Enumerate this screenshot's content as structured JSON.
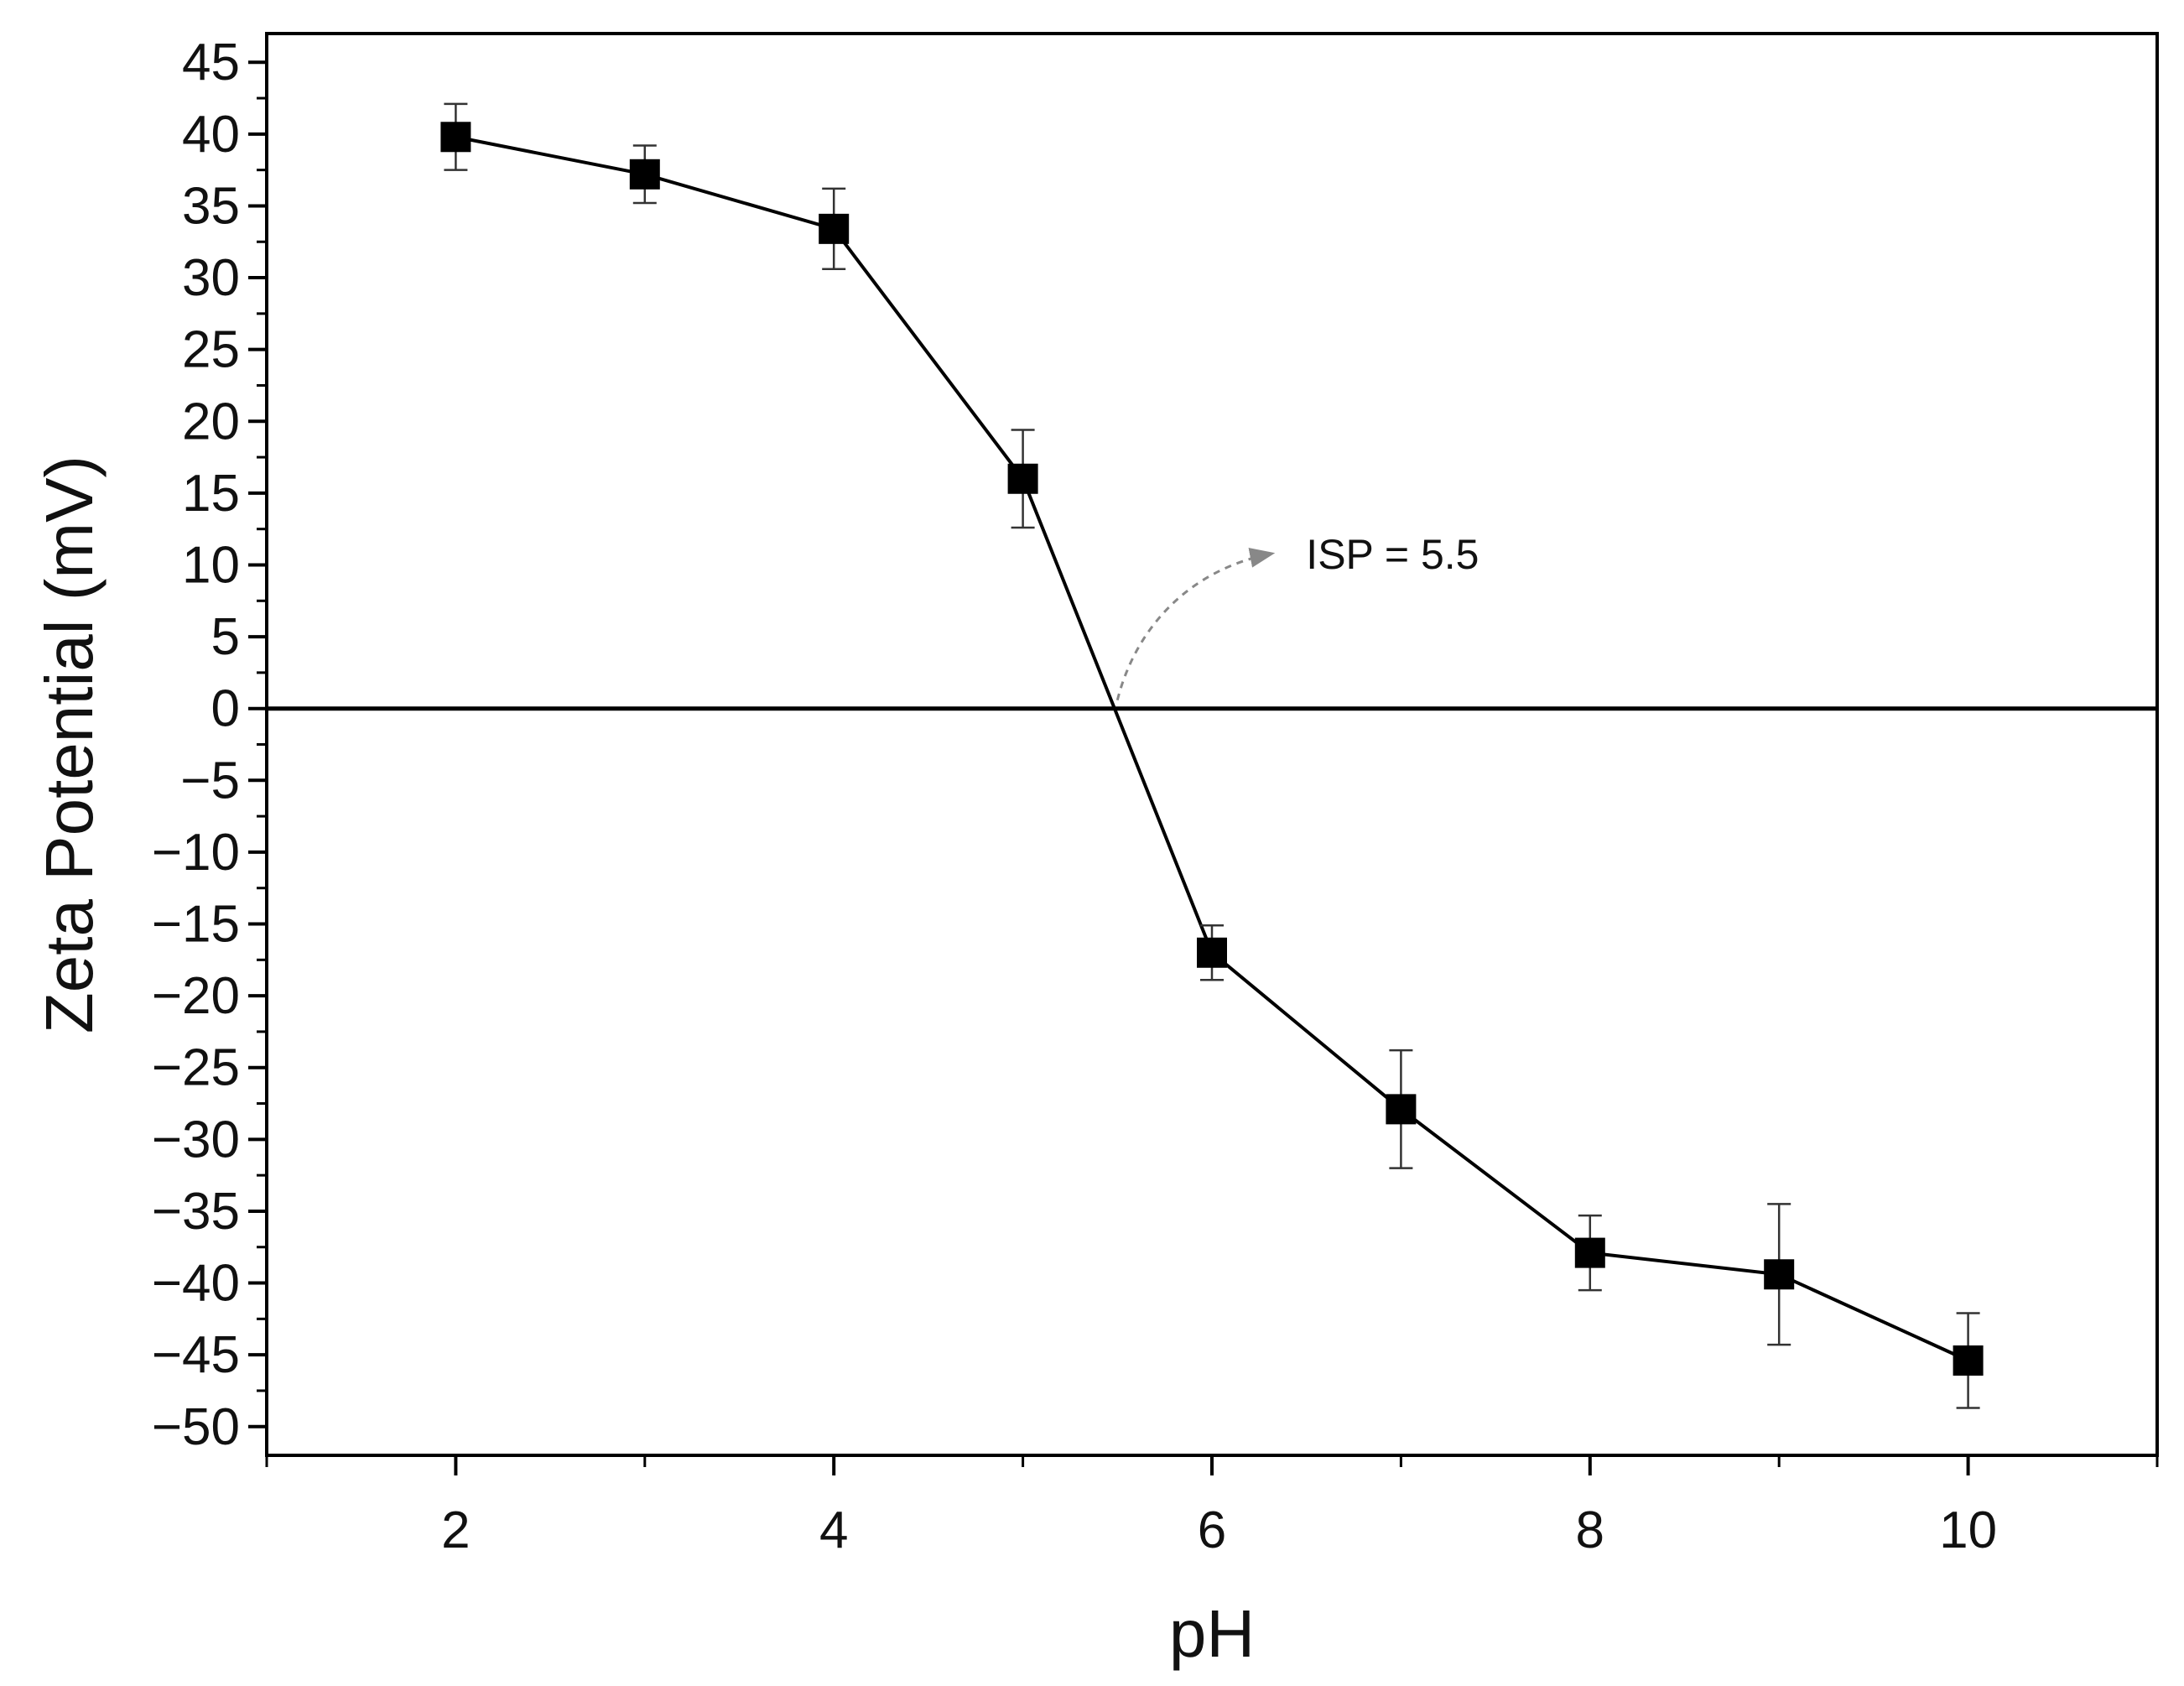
{
  "chart_data": {
    "type": "line",
    "title": "",
    "xlabel": "pH",
    "ylabel": "Zeta Potential (mV)",
    "xlim": [
      1,
      11
    ],
    "ylim": [
      -52,
      47
    ],
    "x_ticks": [
      2,
      4,
      6,
      8,
      10
    ],
    "y_ticks": [
      45,
      40,
      35,
      30,
      25,
      20,
      15,
      10,
      5,
      0,
      -5,
      -10,
      -15,
      -20,
      -25,
      -30,
      -35,
      -40,
      -45,
      -50
    ],
    "grid": false,
    "legend": "none",
    "marker": "square",
    "color": "#000000",
    "zero_line": true,
    "series": [
      {
        "x": [
          2,
          3,
          4,
          5,
          6,
          7,
          8,
          9,
          10
        ],
        "y": [
          39.8,
          37.2,
          33.4,
          16.0,
          -17.0,
          -27.9,
          -37.9,
          -39.4,
          -45.4
        ],
        "error": [
          2.3,
          2.0,
          2.8,
          3.4,
          1.9,
          4.1,
          2.6,
          4.9,
          3.3
        ]
      }
    ],
    "annotations": [
      {
        "text": "ISP = 5.5",
        "x": 5.5,
        "y": 0
      }
    ]
  }
}
